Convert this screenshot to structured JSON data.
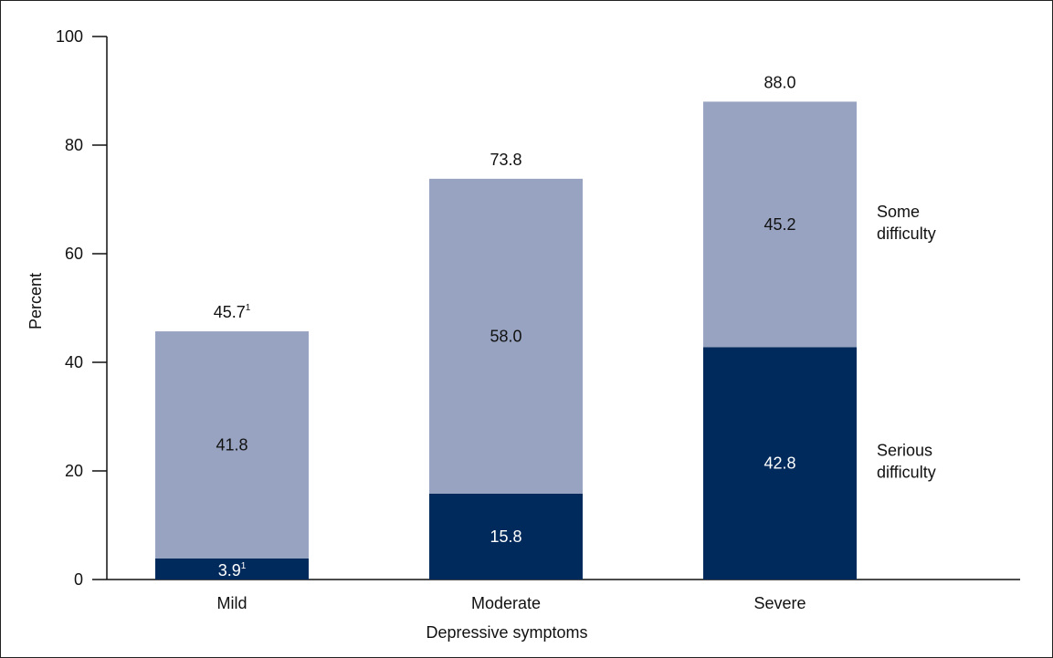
{
  "chart_data": {
    "type": "bar",
    "stacked": true,
    "categories": [
      "Mild",
      "Moderate",
      "Severe"
    ],
    "series": [
      {
        "name": "Serious difficulty",
        "legend_label": [
          "Serious",
          "difficulty"
        ],
        "values": [
          3.9,
          15.8,
          42.8
        ],
        "labels": [
          "3.9",
          "15.8",
          "42.8"
        ],
        "label_footnotes": [
          "1",
          "",
          ""
        ],
        "color": "#002a5c",
        "label_color": "#ffffff"
      },
      {
        "name": "Some difficulty",
        "legend_label": [
          "Some",
          "difficulty"
        ],
        "values": [
          41.8,
          58.0,
          45.2
        ],
        "labels": [
          "41.8",
          "58.0",
          "45.2"
        ],
        "label_footnotes": [
          "",
          "",
          ""
        ],
        "color": "#97a3c0",
        "label_color": "#111111"
      }
    ],
    "totals": {
      "values": [
        45.7,
        73.8,
        88.0
      ],
      "labels": [
        "45.7",
        "73.8",
        "88.0"
      ],
      "footnotes": [
        "1",
        "",
        ""
      ]
    },
    "xlabel": "Depressive symptoms",
    "ylabel": "Percent",
    "ylim": [
      0,
      100
    ],
    "yticks": [
      0,
      20,
      40,
      60,
      80,
      100
    ],
    "grid": false,
    "legend_placement": "right, next to last bar"
  }
}
